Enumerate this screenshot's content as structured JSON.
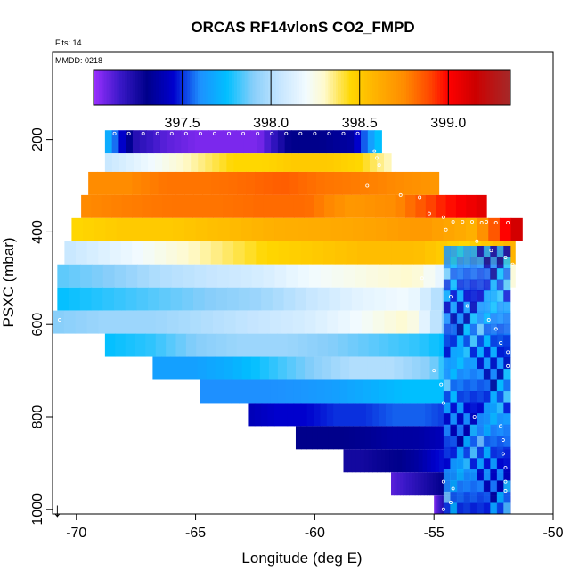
{
  "chart_data": {
    "type": "heatmap",
    "title": "ORCAS RF14vlonS CO2_FMPD",
    "flts_label": "Flts: 14",
    "mmdd_label": "MMDD: 0218",
    "xlabel": "Longitude (deg E)",
    "ylabel": "PSXC (mbar)",
    "xlim": [
      -71,
      -50
    ],
    "ylim": [
      1010,
      10
    ],
    "xticks": [
      -70,
      -65,
      -60,
      -55,
      -50
    ],
    "xtick_labels": [
      "-70",
      "-65",
      "-60",
      "-55",
      "-50"
    ],
    "yticks": [
      200,
      400,
      600,
      800,
      1000
    ],
    "ytick_labels": [
      "200",
      "400",
      "600",
      "800",
      "1000"
    ],
    "colorbar": {
      "range": [
        397.0,
        399.35
      ],
      "ticks": [
        397.5,
        398.0,
        398.5,
        399.0
      ],
      "tick_labels": [
        "397.5",
        "398.0",
        "398.5",
        "399.0"
      ],
      "stops": [
        {
          "v": 397.0,
          "c": "#9b30ff"
        },
        {
          "v": 397.15,
          "c": "#3a18c8"
        },
        {
          "v": 397.3,
          "c": "#00008b"
        },
        {
          "v": 397.45,
          "c": "#0000cd"
        },
        {
          "v": 397.6,
          "c": "#1e90ff"
        },
        {
          "v": 397.75,
          "c": "#00bfff"
        },
        {
          "v": 397.9,
          "c": "#87cefa"
        },
        {
          "v": 398.05,
          "c": "#c6e6ff"
        },
        {
          "v": 398.2,
          "c": "#f2fbff"
        },
        {
          "v": 398.3,
          "c": "#fffacd"
        },
        {
          "v": 398.45,
          "c": "#ffd700"
        },
        {
          "v": 398.6,
          "c": "#ffb000"
        },
        {
          "v": 398.75,
          "c": "#ff8c00"
        },
        {
          "v": 398.9,
          "c": "#ff4500"
        },
        {
          "v": 399.0,
          "c": "#ff0000"
        },
        {
          "v": 399.15,
          "c": "#cd0000"
        },
        {
          "v": 399.35,
          "c": "#a52a2a"
        }
      ]
    },
    "bands": [
      {
        "p_top": 180,
        "p_bot": 230,
        "lon_min": -68.8,
        "lon_max": -57.2,
        "cells": [
          397.75,
          397.2,
          397.1,
          397.05,
          397.05,
          397.05,
          397.3,
          397.3,
          397.35,
          397.8
        ]
      },
      {
        "p_top": 230,
        "p_bot": 270,
        "lon_min": -68.8,
        "lon_max": -56.8,
        "cells": [
          398.05,
          398.15,
          398.25,
          398.35,
          398.45,
          398.45,
          398.5,
          398.5,
          398.45,
          398.3
        ]
      },
      {
        "p_top": 270,
        "p_bot": 320,
        "lon_min": -69.5,
        "lon_max": -54.8,
        "cells": [
          398.75,
          398.75,
          398.8,
          398.8,
          398.82,
          398.85,
          398.8,
          398.78,
          398.75,
          398.7
        ]
      },
      {
        "p_top": 320,
        "p_bot": 370,
        "lon_min": -69.8,
        "lon_max": -52.8,
        "cells": [
          398.75,
          398.78,
          398.8,
          398.8,
          398.82,
          398.82,
          398.7,
          398.75,
          398.95,
          399.1
        ]
      },
      {
        "p_top": 370,
        "p_bot": 420,
        "lon_min": -70.2,
        "lon_max": -51.3,
        "cells": [
          398.45,
          398.5,
          398.5,
          398.55,
          398.6,
          398.62,
          398.65,
          398.7,
          398.6,
          399.2
        ]
      },
      {
        "p_top": 420,
        "p_bot": 470,
        "lon_min": -70.5,
        "lon_max": -51.6,
        "cells": [
          398.05,
          398.15,
          398.25,
          398.35,
          398.45,
          398.5,
          398.55,
          398.55,
          398.45,
          398.6
        ]
      },
      {
        "p_top": 470,
        "p_bot": 520,
        "lon_min": -70.8,
        "lon_max": -51.6,
        "cells": [
          397.85,
          397.9,
          398.0,
          398.05,
          398.1,
          398.2,
          398.25,
          398.3,
          398.05,
          398.3
        ]
      },
      {
        "p_top": 520,
        "p_bot": 570,
        "lon_min": -70.8,
        "lon_max": -51.8,
        "cells": [
          397.75,
          397.8,
          397.85,
          397.9,
          397.95,
          398.05,
          398.15,
          398.2,
          397.85,
          398.25
        ]
      },
      {
        "p_top": 570,
        "p_bot": 620,
        "lon_min": -71.0,
        "lon_max": -51.8,
        "cells": [
          397.9,
          397.95,
          397.95,
          398.0,
          398.05,
          398.1,
          398.2,
          398.3,
          397.8,
          398.0
        ]
      },
      {
        "p_top": 620,
        "p_bot": 670,
        "lon_min": -68.8,
        "lon_max": -51.8,
        "cells": [
          397.75,
          397.8,
          397.9,
          397.95,
          397.95,
          397.9,
          397.85,
          397.8,
          397.7,
          397.75
        ]
      },
      {
        "p_top": 670,
        "p_bot": 720,
        "lon_min": -66.8,
        "lon_max": -51.8,
        "cells": [
          397.65,
          397.65,
          397.7,
          397.8,
          397.9,
          398.0,
          398.0,
          397.9,
          397.6,
          397.7
        ]
      },
      {
        "p_top": 720,
        "p_bot": 770,
        "lon_min": -64.8,
        "lon_max": -51.8,
        "cells": [
          397.6,
          397.6,
          397.6,
          397.62,
          397.65,
          397.7,
          397.75,
          397.75,
          397.6,
          397.7
        ]
      },
      {
        "p_top": 770,
        "p_bot": 820,
        "lon_min": -62.8,
        "lon_max": -51.8,
        "cells": [
          397.4,
          397.45,
          397.45,
          397.5,
          397.5,
          397.55,
          397.55,
          397.5,
          397.5,
          397.6
        ]
      },
      {
        "p_top": 820,
        "p_bot": 870,
        "lon_min": -60.8,
        "lon_max": -51.8,
        "cells": [
          397.3,
          397.3,
          397.3,
          397.32,
          397.35,
          397.35,
          397.4,
          397.45,
          397.5,
          397.6
        ]
      },
      {
        "p_top": 870,
        "p_bot": 920,
        "lon_min": -58.8,
        "lon_max": -51.8,
        "cells": [
          397.25,
          397.25,
          397.28,
          397.3,
          397.35,
          397.45,
          397.5,
          397.55,
          397.5,
          397.45
        ]
      },
      {
        "p_top": 920,
        "p_bot": 970,
        "lon_min": -56.8,
        "lon_max": -51.8,
        "cells": [
          397.1,
          397.15,
          397.2,
          397.25,
          397.3,
          397.4,
          397.45,
          397.5,
          397.45,
          397.4
        ]
      },
      {
        "p_top": 970,
        "p_bot": 1010,
        "lon_min": -55.0,
        "lon_max": -51.8,
        "cells": [
          397.05,
          397.2,
          397.3,
          397.35,
          397.35,
          397.4,
          397.45,
          397.5,
          397.45,
          397.4
        ]
      }
    ],
    "vertical_profile": {
      "lon_min": -54.6,
      "lon_max": -51.8,
      "p_top": 430,
      "p_bot": 1010,
      "cells": [
        397.7,
        397.6,
        397.8,
        397.55,
        397.65,
        397.5,
        397.6,
        397.45,
        397.55,
        397.4
      ]
    },
    "flight_track_points": [
      [
        -68.4,
        187
      ],
      [
        -67.8,
        187
      ],
      [
        -67.2,
        187
      ],
      [
        -66.6,
        187
      ],
      [
        -66.0,
        187
      ],
      [
        -65.4,
        187
      ],
      [
        -64.8,
        187
      ],
      [
        -64.2,
        187
      ],
      [
        -63.6,
        187
      ],
      [
        -63.0,
        187
      ],
      [
        -62.4,
        187
      ],
      [
        -61.8,
        187
      ],
      [
        -61.2,
        187
      ],
      [
        -60.6,
        187
      ],
      [
        -60.0,
        187
      ],
      [
        -59.4,
        187
      ],
      [
        -58.8,
        187
      ],
      [
        -58.2,
        187
      ],
      [
        -57.5,
        225
      ],
      [
        -57.4,
        240
      ],
      [
        -57.3,
        255
      ],
      [
        -57.8,
        300
      ],
      [
        -56.4,
        320
      ],
      [
        -55.6,
        325
      ],
      [
        -55.2,
        360
      ],
      [
        -54.6,
        368
      ],
      [
        -54.2,
        378
      ],
      [
        -53.8,
        378
      ],
      [
        -53.4,
        378
      ],
      [
        -53.0,
        380
      ],
      [
        -52.8,
        378
      ],
      [
        -52.4,
        380
      ],
      [
        -51.9,
        380
      ],
      [
        -54.5,
        395
      ],
      [
        -53.2,
        420
      ],
      [
        -52.6,
        440
      ],
      [
        -52.0,
        455
      ],
      [
        -51.7,
        470
      ],
      [
        -55.5,
        500
      ],
      [
        -54.3,
        540
      ],
      [
        -53.6,
        560
      ],
      [
        -52.7,
        590
      ],
      [
        -52.4,
        610
      ],
      [
        -52.2,
        640
      ],
      [
        -51.9,
        660
      ],
      [
        -51.9,
        690
      ],
      [
        -55.0,
        700
      ],
      [
        -54.7,
        730
      ],
      [
        -54.6,
        770
      ],
      [
        -53.3,
        800
      ],
      [
        -52.2,
        820
      ],
      [
        -52.1,
        850
      ],
      [
        -52.1,
        880
      ],
      [
        -52.0,
        910
      ],
      [
        -52.0,
        940
      ],
      [
        -52.0,
        960
      ],
      [
        -54.6,
        940
      ],
      [
        -54.2,
        955
      ],
      [
        -54.3,
        985
      ],
      [
        -54.6,
        1000
      ],
      [
        -70.7,
        590
      ]
    ],
    "arrow_lon": -70.8,
    "arrow_label": "↓"
  }
}
